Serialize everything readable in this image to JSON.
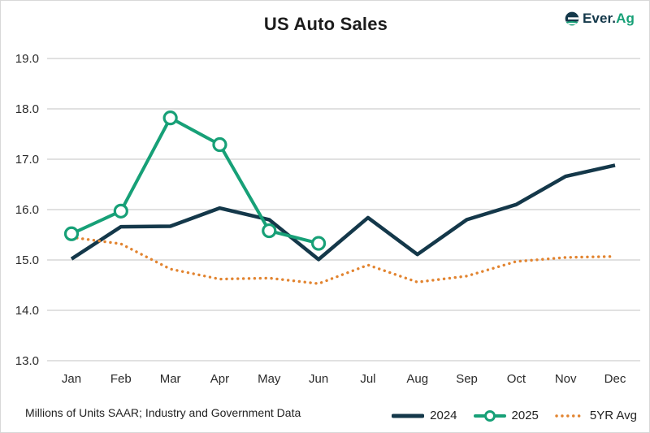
{
  "header": {
    "title": "US Auto Sales",
    "logo": {
      "text_primary": "Ever.",
      "text_accent": "Ag"
    }
  },
  "footer": {
    "note": "Millions of Units SAAR; Industry and Government Data"
  },
  "colors": {
    "navy": "#14384A",
    "teal": "#17A077",
    "orange": "#E28430",
    "grid": "#CFCFCF",
    "text": "#222222"
  },
  "chart_data": {
    "type": "line",
    "title": "US Auto Sales",
    "categories": [
      "Jan",
      "Feb",
      "Mar",
      "Apr",
      "May",
      "Jun",
      "Jul",
      "Aug",
      "Sep",
      "Oct",
      "Nov",
      "Dec"
    ],
    "series": [
      {
        "name": "2024",
        "color_key": "navy",
        "style": "solid",
        "values": [
          15.02,
          15.66,
          15.67,
          16.03,
          15.8,
          15.01,
          15.84,
          15.11,
          15.8,
          16.1,
          16.66,
          16.88
        ]
      },
      {
        "name": "2025",
        "color_key": "teal",
        "style": "solid-markers",
        "values": [
          15.52,
          15.97,
          17.82,
          17.29,
          15.58,
          15.33,
          null,
          null,
          null,
          null,
          null,
          null
        ]
      },
      {
        "name": "5YR Avg",
        "color_key": "orange",
        "style": "dotted",
        "values": [
          15.45,
          15.32,
          14.82,
          14.62,
          14.64,
          14.53,
          14.9,
          14.56,
          14.68,
          14.97,
          15.05,
          15.07
        ]
      }
    ],
    "ylim": [
      13.0,
      19.0
    ],
    "ytick_step": 1.0,
    "yticks": [
      "19.0",
      "18.0",
      "17.0",
      "16.0",
      "15.0",
      "14.0",
      "13.0"
    ],
    "xlabel": "",
    "ylabel": "",
    "grid": "horizontal",
    "legend_position": "bottom-right"
  }
}
